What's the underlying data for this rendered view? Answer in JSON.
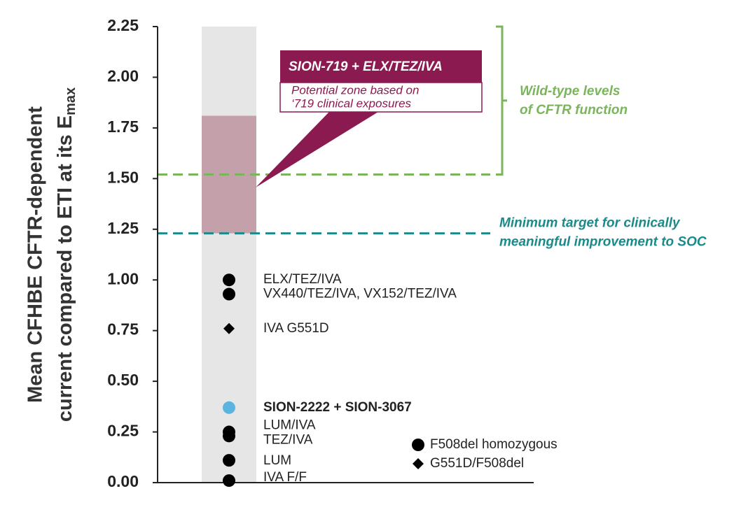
{
  "chart_data": {
    "type": "scatter",
    "y_label": [
      "Mean CFHBE CFTR-dependent",
      "current compared to ETI at its E"
    ],
    "y_label_sub": "max",
    "ylim": [
      0,
      2.25
    ],
    "yticks": [
      {
        "value": 0,
        "label": "0.00"
      },
      0.25,
      {
        "value": 0.5,
        "label": "0.50"
      },
      0.75,
      {
        "value": 1,
        "label": "1.00"
      },
      1.25,
      {
        "value": 1.5,
        "label": "1.50"
      },
      1.75,
      {
        "value": 2,
        "label": "2.00"
      },
      2.25
    ],
    "points": [
      {
        "label": "ELX/TEZ/IVA",
        "value": 1.0,
        "marker": "circle",
        "color": "#000000"
      },
      {
        "label": "VX440/TEZ/IVA, VX152/TEZ/IVA",
        "value": 0.93,
        "marker": "circle",
        "color": "#000000"
      },
      {
        "label": "IVA G551D",
        "value": 0.76,
        "marker": "diamond",
        "color": "#000000"
      },
      {
        "label": "SION-2222 + SION-3067",
        "value": 0.37,
        "marker": "circle",
        "color": "#5bb4e0"
      },
      {
        "label": "LUM/IVA",
        "value": 0.25,
        "marker": "circle",
        "color": "#000000"
      },
      {
        "label": "TEZ/IVA",
        "value": 0.23,
        "marker": "circle",
        "color": "#000000"
      },
      {
        "label": "LUM",
        "value": 0.11,
        "marker": "circle",
        "color": "#000000"
      },
      {
        "label": "IVA F/F",
        "value": 0.01,
        "marker": "circle",
        "color": "#000000"
      }
    ],
    "zone": {
      "range": [
        1.23,
        1.81
      ],
      "color": "#c4a0aa",
      "title": "SION-719 + ELX/TEZ/IVA",
      "subtitle": [
        "Potential zone based on",
        "‘719 clinical exposures"
      ]
    },
    "reference_lines": [
      {
        "value": 1.52,
        "color": "#7ab55c"
      },
      {
        "value": 1.23,
        "color": "#1b8a8a",
        "label": [
          "Minimum target for clinically",
          "meaningful improvement to SOC"
        ]
      }
    ],
    "bracket": {
      "range": [
        1.52,
        2.25
      ],
      "color": "#7ab55c",
      "label": [
        "Wild-type levels",
        "of CFTR function"
      ]
    },
    "legend": [
      {
        "marker": "circle",
        "label": "F508del homozygous"
      },
      {
        "marker": "diamond",
        "label": "G551D/F508del"
      }
    ]
  }
}
